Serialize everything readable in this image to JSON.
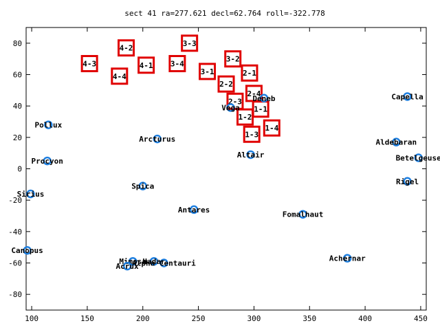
{
  "chart_data": {
    "type": "scatter",
    "title": "sect 41 ra=277.621 decl=62.764 roll=-322.778",
    "xlim": [
      95,
      455
    ],
    "ylim": [
      -90,
      90
    ],
    "xticks": [
      100,
      150,
      200,
      250,
      300,
      350,
      400,
      450
    ],
    "yticks": [
      -80,
      -60,
      -40,
      -20,
      0,
      20,
      40,
      60,
      80
    ],
    "grid": false,
    "stars": [
      {
        "name": "Capella",
        "x": 438,
        "y": 46
      },
      {
        "name": "Deneb",
        "x": 309,
        "y": 45
      },
      {
        "name": "Vega",
        "x": 279,
        "y": 39
      },
      {
        "name": "Pollux",
        "x": 115,
        "y": 28
      },
      {
        "name": "Arcturus",
        "x": 213,
        "y": 19
      },
      {
        "name": "Aldebaran",
        "x": 428,
        "y": 17
      },
      {
        "name": "Altair",
        "x": 297,
        "y": 9
      },
      {
        "name": "Betelgeuse",
        "x": 448,
        "y": 7
      },
      {
        "name": "Procyon",
        "x": 114,
        "y": 5
      },
      {
        "name": "Rigel",
        "x": 438,
        "y": -8
      },
      {
        "name": "Spica",
        "x": 200,
        "y": -11
      },
      {
        "name": "Sirius",
        "x": 99,
        "y": -16
      },
      {
        "name": "Antares",
        "x": 246,
        "y": -26
      },
      {
        "name": "Fomalhaut",
        "x": 344,
        "y": -29
      },
      {
        "name": "Canopus",
        "x": 96,
        "y": -52
      },
      {
        "name": "Achernar",
        "x": 384,
        "y": -57
      },
      {
        "name": "Mimosa",
        "x": 191,
        "y": -59
      },
      {
        "name": "Hadar",
        "x": 210,
        "y": -59
      },
      {
        "name": "Alpha Centauri",
        "x": 219,
        "y": -60
      },
      {
        "name": "Acrux",
        "x": 186,
        "y": -62
      }
    ],
    "sectors": [
      {
        "label": "4-3",
        "x": 152,
        "y": 67
      },
      {
        "label": "4-2",
        "x": 185,
        "y": 77
      },
      {
        "label": "4-4",
        "x": 179,
        "y": 59
      },
      {
        "label": "4-1",
        "x": 203,
        "y": 66
      },
      {
        "label": "3-3",
        "x": 242,
        "y": 80
      },
      {
        "label": "3-4",
        "x": 231,
        "y": 67
      },
      {
        "label": "3-2",
        "x": 281,
        "y": 70
      },
      {
        "label": "3-1",
        "x": 258,
        "y": 62
      },
      {
        "label": "2-1",
        "x": 296,
        "y": 61
      },
      {
        "label": "2-2",
        "x": 275,
        "y": 54
      },
      {
        "label": "2-4",
        "x": 300,
        "y": 48
      },
      {
        "label": "2-3",
        "x": 283,
        "y": 43
      },
      {
        "label": "1-1",
        "x": 306,
        "y": 38
      },
      {
        "label": "1-2",
        "x": 292,
        "y": 33
      },
      {
        "label": "1-4",
        "x": 316,
        "y": 26
      },
      {
        "label": "1-3",
        "x": 298,
        "y": 22
      }
    ],
    "colors": {
      "star": "#1e7fe0",
      "sector": "#e00000",
      "axis": "#000000"
    }
  }
}
